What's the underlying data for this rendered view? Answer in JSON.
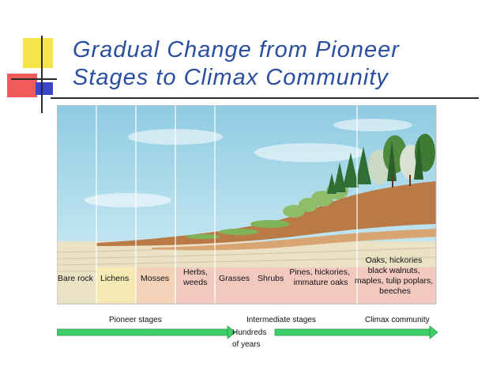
{
  "slide": {
    "title_line1": "Gradual Change from Pioneer",
    "title_line2": "Stages to Climax Community"
  },
  "columns": [
    {
      "lines": [
        "Bare rock"
      ]
    },
    {
      "lines": [
        "Lichens"
      ]
    },
    {
      "lines": [
        "Mosses"
      ]
    },
    {
      "lines": [
        "Herbs,",
        "weeds"
      ]
    },
    {
      "lines": [
        "Grasses"
      ]
    },
    {
      "lines": [
        "Shrubs"
      ]
    },
    {
      "lines": [
        "Pines, hickories,",
        "immature oaks"
      ]
    },
    {
      "lines": [
        "Oaks, hickories",
        "black walnuts,",
        "maples, tulip poplars,",
        "beeches"
      ]
    }
  ],
  "stages": {
    "pioneer": "Pioneer stages",
    "intermediate": "Intermediate stages",
    "climax": "Climax community"
  },
  "timeline": {
    "line1": "Hundreds",
    "line2": "of years"
  },
  "colors": {
    "title": "#2a4fa0",
    "sky": "#a6d8ea",
    "soil": "#b97a46",
    "rock": "#ebe2c6",
    "arrow": "#3fcf6a"
  }
}
